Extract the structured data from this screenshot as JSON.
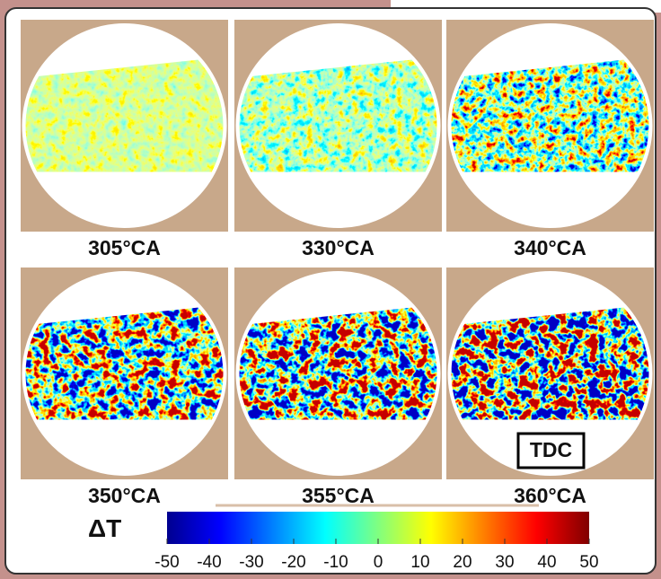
{
  "panels": [
    {
      "label": "305°CA"
    },
    {
      "label": "330°CA"
    },
    {
      "label": "340°CA"
    },
    {
      "label": "350°CA"
    },
    {
      "label": "355°CA"
    },
    {
      "label": "360°CA"
    }
  ],
  "badge": "TDC",
  "colorbar": {
    "label": "ΔT",
    "lim": [
      -50,
      50
    ],
    "ticks": [
      -50,
      -40,
      -30,
      -20,
      -10,
      0,
      10,
      20,
      30,
      40,
      50
    ]
  }
}
